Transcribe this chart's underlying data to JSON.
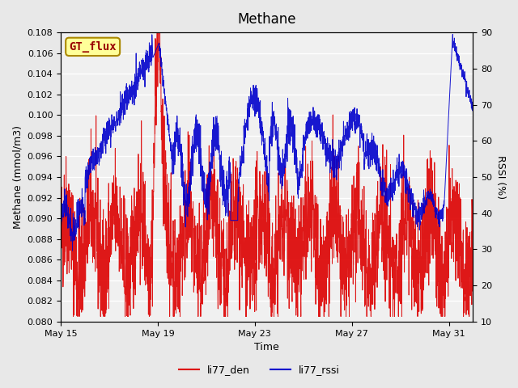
{
  "title": "Methane",
  "xlabel": "Time",
  "ylabel_left": "Methane (mmol/m3)",
  "ylabel_right": "RSSI (%)",
  "ylim_left": [
    0.08,
    0.108
  ],
  "ylim_right": [
    10,
    90
  ],
  "xtick_labels": [
    "May 15",
    "May 19",
    "May 23",
    "May 27",
    "May 31"
  ],
  "xtick_positions": [
    0,
    4,
    8,
    12,
    16
  ],
  "background_color": "#e8e8e8",
  "plot_bg_color": "#f0f0f0",
  "grid_color": "#ffffff",
  "line_color_red": "#dd0000",
  "line_color_blue": "#0000cc",
  "legend_labels": [
    "li77_den",
    "li77_rssi"
  ],
  "annotation_text": "GT_flux",
  "annotation_box_color": "#ffff99",
  "annotation_border_color": "#aa8800",
  "annotation_text_color": "#990000",
  "n_days": 17,
  "xlim": [
    0,
    17
  ]
}
